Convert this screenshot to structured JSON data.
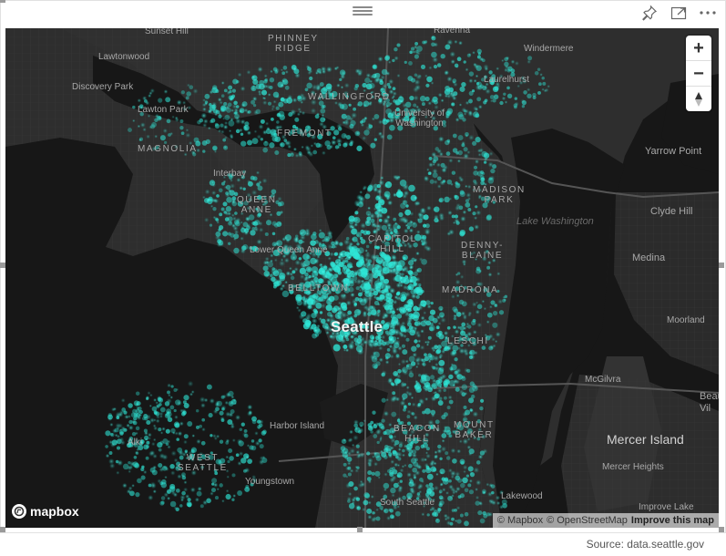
{
  "header": {
    "pin_icon": "pin-icon",
    "focus_icon": "focus-mode-icon",
    "more_icon": "more-options-icon"
  },
  "map": {
    "theme_color": "#2ee6d6",
    "labels": {
      "sunset_hill": "Sunset Hill",
      "phinney_ridge": "PHINNEY\nRIDGE",
      "ravenna": "Ravenna",
      "windermere": "Windermere",
      "lawtonwood": "Lawtonwood",
      "laurelhurst": "Laurelhurst",
      "discovery_park": "Discovery Park",
      "wallingford": "WALLINGFORD",
      "lawton_park": "Lawton Park",
      "university_of_washington": "University of\nWashington",
      "magnolia": "MAGNOLIA",
      "fremont": "FREMONT",
      "yarrow_point": "Yarrow Point",
      "interbay": "Interbay",
      "madison_park": "MADISON\nPARK",
      "queen_anne": "QUEEN\nANNE",
      "lake_washington": "Lake Washington",
      "clyde_hill": "Clyde Hill",
      "capitol_hill": "CAPITOL\nHILL",
      "lower_queen_anne": "Lower Queen Anne",
      "denny_blaine": "DENNY-\nBLAINE",
      "medina": "Medina",
      "belltown": "BELLTOWN",
      "madrona": "MADRONA",
      "seattle": "Seattle",
      "moorland": "Moorland",
      "leschi": "LESCHI",
      "mcgilvra": "McGilvra",
      "beaux_arts": "Beau\nVil",
      "harbor_island": "Harbor Island",
      "beacon_hill": "BEACON\nHILL",
      "mount_baker": "MOUNT\nBAKER",
      "mercer_island": "Mercer Island",
      "alki": "Alki",
      "west_seattle": "WEST\nSEATTLE",
      "mercer_heights": "Mercer Heights",
      "youngstown": "Youngstown",
      "lakewood": "Lakewood",
      "south_seattle": "South Seattle",
      "improve_lake": "Improve Lake"
    },
    "zoom_in": "+",
    "zoom_out": "−",
    "compass_icon": "compass-icon",
    "logo_text": "mapbox",
    "attribution": {
      "mapbox": "© Mapbox",
      "osm": "© OpenStreetMap",
      "improve": "Improve this map"
    }
  },
  "source": "Source: data.seattle.gov"
}
